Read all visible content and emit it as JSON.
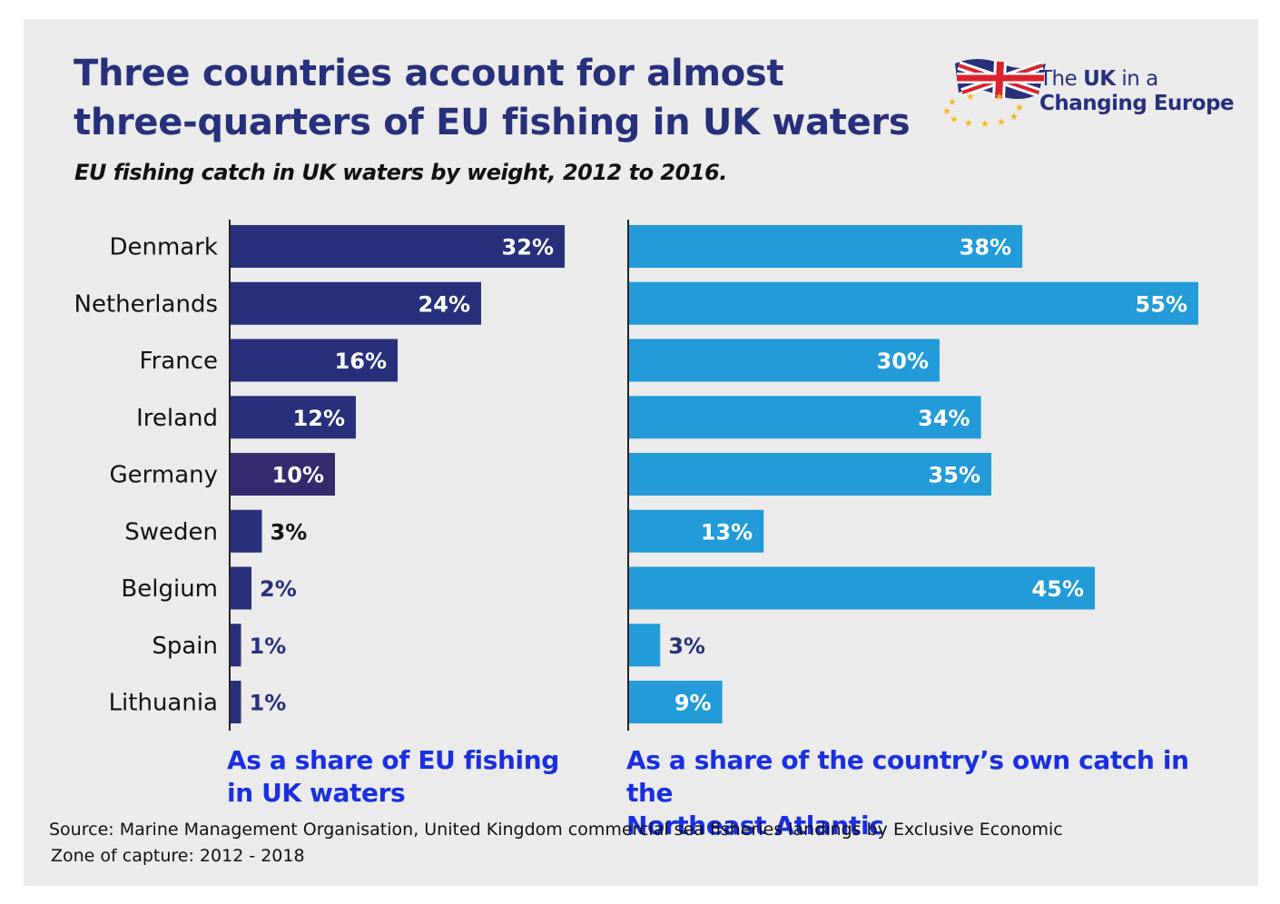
{
  "header": {
    "title_line1": "Three countries account for almost",
    "title_line2": "three-quarters of EU fishing in UK waters",
    "subtitle": "EU fishing catch in UK waters by weight, 2012 to 2016."
  },
  "logo": {
    "line1_pre": "The ",
    "line1_bold": "UK",
    "line1_post": " in a",
    "line2": "Changing Europe",
    "icon": "union-jack-flag-with-eu-stars"
  },
  "captions": {
    "left_line1": "As a share of EU fishing",
    "left_line2": "in UK waters",
    "right_line1": "As a share of the country’s own catch in the",
    "right_line2": "Northeast Atlantic"
  },
  "source": {
    "line1": "Source: Marine Management Organisation, United Kingdom commercial sea fisheries landings by Exclusive Economic",
    "line2": "Zone of capture: 2012 - 2018"
  },
  "colors": {
    "title": "#28307b",
    "left_bar": "#28307b",
    "left_bar_highlight": "#352a6d",
    "right_bar": "#229bd8",
    "caption": "#1a2fe0",
    "background": "#ebebeb"
  },
  "chart_data": [
    {
      "type": "bar",
      "orientation": "horizontal",
      "categories": [
        "Denmark",
        "Netherlands",
        "France",
        "Ireland",
        "Germany",
        "Sweden",
        "Belgium",
        "Spain",
        "Lithuania"
      ],
      "values": [
        32,
        24,
        16,
        12,
        10,
        3,
        2,
        1,
        1
      ],
      "value_labels": [
        "32%",
        "24%",
        "16%",
        "12%",
        "10%",
        "3%",
        "2%",
        "1%",
        "1%"
      ],
      "unit": "%",
      "xlabel": "As a share of EU fishing in UK waters",
      "xlim": [
        0,
        32
      ],
      "grid": false,
      "legend": "none"
    },
    {
      "type": "bar",
      "orientation": "horizontal",
      "categories": [
        "Denmark",
        "Netherlands",
        "France",
        "Ireland",
        "Germany",
        "Sweden",
        "Belgium",
        "Spain",
        "Lithuania"
      ],
      "values": [
        38,
        55,
        30,
        34,
        35,
        13,
        45,
        3,
        9
      ],
      "value_labels": [
        "38%",
        "55%",
        "30%",
        "34%",
        "35%",
        "13%",
        "45%",
        "3%",
        "9%"
      ],
      "unit": "%",
      "xlabel": "As a share of the country’s own catch in the Northeast Atlantic",
      "xlim": [
        0,
        55
      ],
      "grid": false,
      "legend": "none"
    }
  ]
}
